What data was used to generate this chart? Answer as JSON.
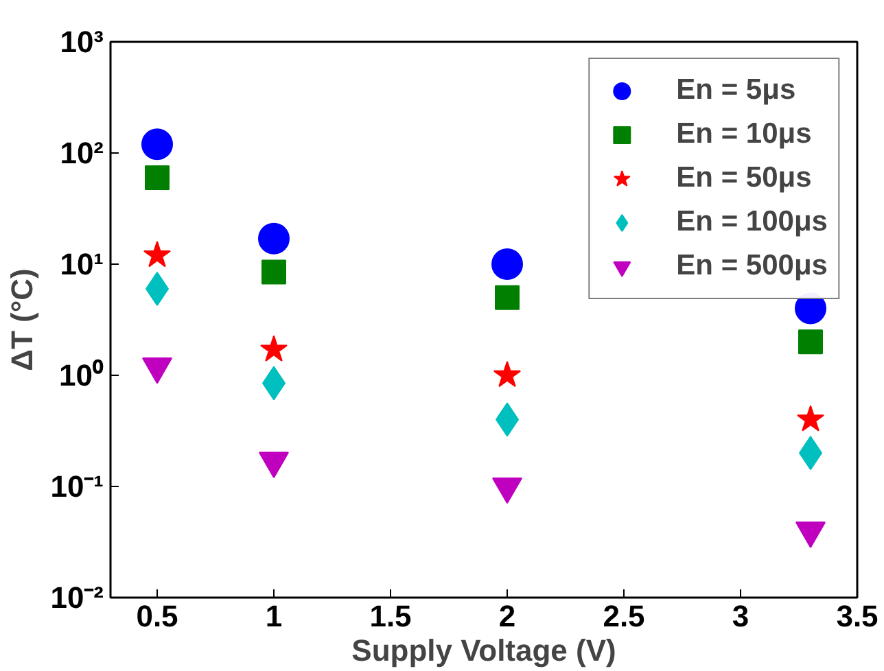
{
  "chart_data": {
    "type": "scatter",
    "xlabel": "Supply Voltage (V)",
    "ylabel": "ΔT (°C)",
    "x": [
      0.5,
      1,
      2,
      3.3
    ],
    "series": [
      {
        "name": "En = 5μs",
        "color": "#0000ff",
        "marker": "circle",
        "values": [
          120,
          17,
          10,
          4
        ]
      },
      {
        "name": "En = 10μs",
        "color": "#007f00",
        "marker": "square",
        "values": [
          60,
          8.5,
          5,
          2
        ]
      },
      {
        "name": "En = 50μs",
        "color": "#ff0000",
        "marker": "star",
        "values": [
          12,
          1.7,
          1,
          0.4
        ]
      },
      {
        "name": "En = 100μs",
        "color": "#00bfbf",
        "marker": "diamond",
        "values": [
          6,
          0.85,
          0.4,
          0.2
        ]
      },
      {
        "name": "En = 500μs",
        "color": "#bf00bf",
        "marker": "triangle_down",
        "values": [
          1.2,
          0.17,
          0.1,
          0.04
        ]
      }
    ],
    "log": "y",
    "xlim": [
      0.3,
      3.5
    ],
    "ylim": [
      0.01,
      1000
    ],
    "xticks": [
      0.5,
      1,
      1.5,
      2,
      2.5,
      3,
      3.5
    ],
    "yticks": [
      {
        "value": 0.01,
        "label": "10⁻²"
      },
      {
        "value": 0.1,
        "label": "10⁻¹"
      },
      {
        "value": 1,
        "label": "10⁰"
      },
      {
        "value": 10,
        "label": "10¹"
      },
      {
        "value": 100,
        "label": "10²"
      },
      {
        "value": 1000,
        "label": "10³"
      }
    ],
    "grid": false,
    "legend": "top right"
  }
}
